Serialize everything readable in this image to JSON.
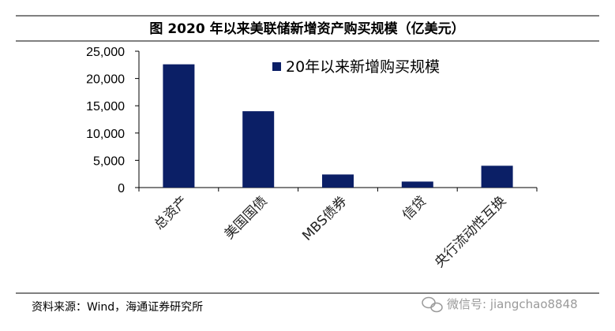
{
  "chart_data": {
    "type": "bar",
    "title": "图 2020 年以来美联储新增资产购买规模（亿美元）",
    "categories": [
      "总资产",
      "美国国债",
      "MBS债券",
      "信贷",
      "央行流动性互换"
    ],
    "series": [
      {
        "name": "20年以来新增购买规模",
        "values": [
          22600,
          14000,
          2400,
          1100,
          4000
        ]
      }
    ],
    "ylim": [
      0,
      25000
    ],
    "yticks": [
      0,
      5000,
      10000,
      15000,
      20000,
      25000
    ],
    "ytick_labels": [
      "0",
      "5,000",
      "10,000",
      "15,000",
      "20,000",
      "25,000"
    ],
    "legend_position": "top-right",
    "grid": false,
    "colors": {
      "bar": "#0b1f66"
    }
  },
  "footer": {
    "source": "资料来源：Wind，海通证券研究所",
    "watermark": "微信号: jiangchao8848"
  }
}
